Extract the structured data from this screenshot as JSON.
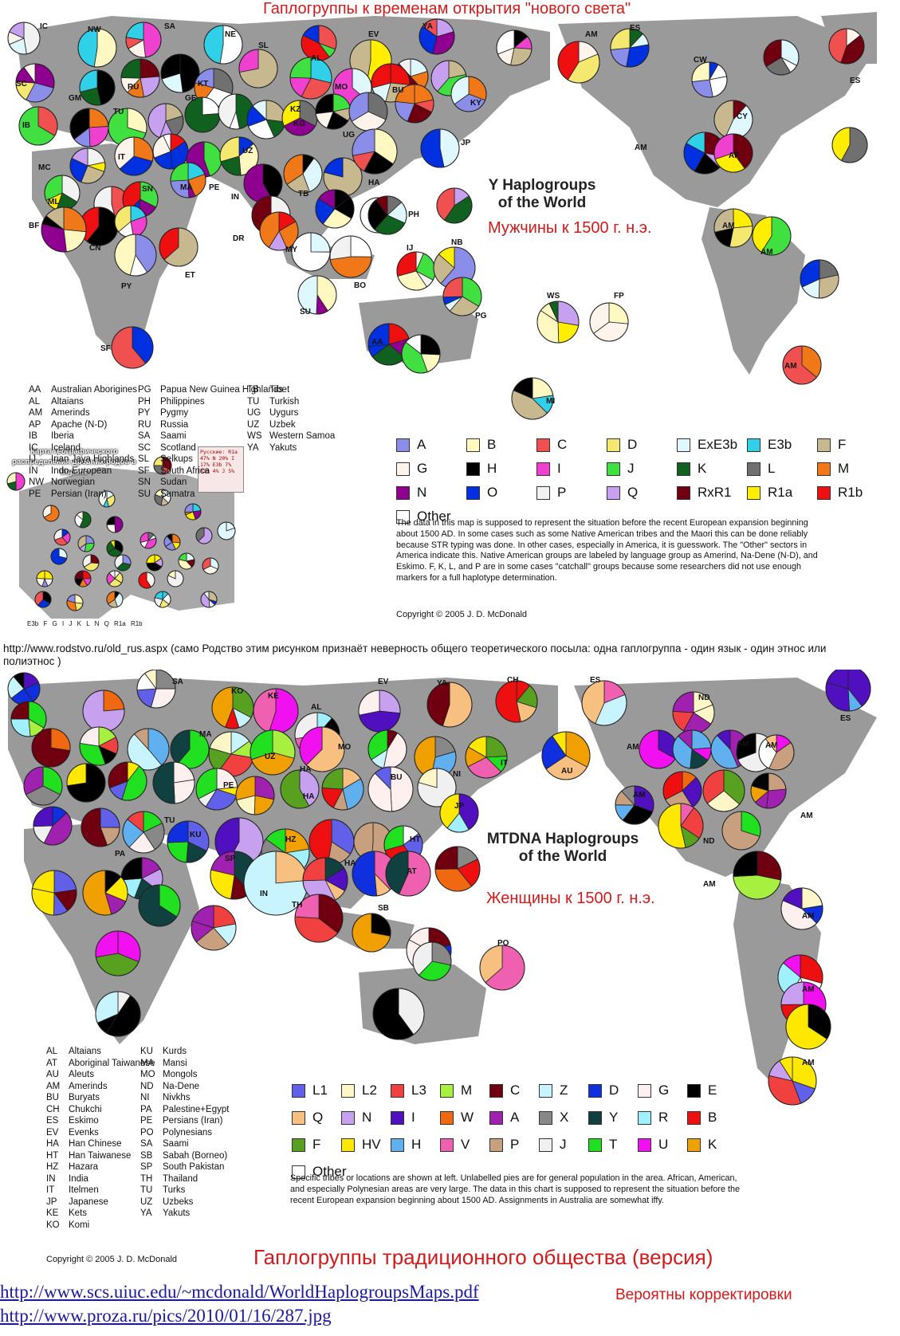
{
  "top": {
    "title": "Гаплогруппы к временам открытия \"нового света\"",
    "heading_line1": "Y Haplogroups",
    "heading_line2": "of the World",
    "subtitle": "Мужчины к 1500 г. н.э.",
    "labels": [
      "IC",
      "NW",
      "SA",
      "NE",
      "EV",
      "YA",
      "AM",
      "ES",
      "ES",
      "SC",
      "GM",
      "RU",
      "SL",
      "AL",
      "MO",
      "BU",
      "KY",
      "IB",
      "TU",
      "GE",
      "KT",
      "KZ",
      "KG",
      "CW",
      "CY",
      "MC",
      "IT",
      "UZ",
      "UG",
      "JP",
      "AM",
      "AP",
      "ML",
      "SN",
      "MA",
      "PE",
      "IN",
      "TB",
      "HA",
      "BF",
      "CN",
      "DR",
      "PH",
      "AM",
      "AM",
      "ET",
      "PY",
      "MY",
      "IJ",
      "NB",
      "BO",
      "SU",
      "PG",
      "WS",
      "FP",
      "SF",
      "AA",
      "AM",
      "MI"
    ],
    "abbreviations": [
      [
        "AA",
        "Australian Aborigines"
      ],
      [
        "AL",
        "Altaians"
      ],
      [
        "AM",
        "Amerinds"
      ],
      [
        "AP",
        "Apache (N-D)"
      ],
      [
        "IB",
        "Iberia"
      ],
      [
        "IC",
        "Iceland"
      ],
      [
        "IJ",
        "Irian Jaya Highlands"
      ],
      [
        "IN",
        "Indo-European"
      ],
      [
        "NW",
        "Norwegian"
      ],
      [
        "PE",
        "Persian (Iran)"
      ],
      [
        "PG",
        "Papua New Guinea Highlands"
      ],
      [
        "PH",
        "Philippines"
      ],
      [
        "PY",
        "Pygmy"
      ],
      [
        "RU",
        "Russia"
      ],
      [
        "SA",
        "Saami"
      ],
      [
        "SC",
        "Scotland"
      ],
      [
        "SL",
        "Selkups"
      ],
      [
        "SF",
        "South Africa"
      ],
      [
        "SN",
        "Sudan"
      ],
      [
        "SU",
        "Sumatra"
      ],
      [
        "TB",
        "Tibet"
      ],
      [
        "TU",
        "Turkish"
      ],
      [
        "UG",
        "Uygurs"
      ],
      [
        "UZ",
        "Uzbek"
      ],
      [
        "WS",
        "Western Samoa"
      ],
      [
        "YA",
        "Yakuts"
      ]
    ],
    "legend": [
      {
        "label": "A",
        "color": "#8a8ee8"
      },
      {
        "label": "B",
        "color": "#fff8c0"
      },
      {
        "label": "C",
        "color": "#f05050"
      },
      {
        "label": "D",
        "color": "#f5e870"
      },
      {
        "label": "ExE3b",
        "color": "#dff8ff"
      },
      {
        "label": "E3b",
        "color": "#30d0e8"
      },
      {
        "label": "F",
        "color": "#c8b890"
      },
      {
        "label": "G",
        "color": "#fff4ec"
      },
      {
        "label": "H",
        "color": "#000000"
      },
      {
        "label": "I",
        "color": "#f040d0"
      },
      {
        "label": "J",
        "color": "#40e040"
      },
      {
        "label": "K",
        "color": "#106020"
      },
      {
        "label": "L",
        "color": "#707070"
      },
      {
        "label": "M",
        "color": "#f07818"
      },
      {
        "label": "N",
        "color": "#900090"
      },
      {
        "label": "O",
        "color": "#0030e0"
      },
      {
        "label": "P",
        "color": "#f2f2f2"
      },
      {
        "label": "Q",
        "color": "#c8a0f0"
      },
      {
        "label": "RxR1",
        "color": "#700010"
      },
      {
        "label": "R1a",
        "color": "#ffee00"
      },
      {
        "label": "R1b",
        "color": "#ee1010"
      },
      {
        "label": "Other",
        "color": "#ffffff"
      }
    ],
    "note": "The data in this map is supposed to represent the situation before the recent European expansion beginning about 1500 AD. In some cases such as some Native American tribes and the Maori this can be done reliably because STR typing was done. In other cases, especially in America, it is guesswork. The \"Other\" sectors in America indicate this. Native American groups are labeled by language group as Amerind, Na-Dene (N-D), and Eskimo. F, K, L, and P are in some cases \"catchall\" groups because some researchers did not use enough markers for a full haplotype determination.",
    "copyright": "Copyright © 2005 J. D. McDonald",
    "inset": {
      "title": "Карта географического распределения древних родов в Европе",
      "russia_box": "Русские: R1a 47% N 20% I 17% E3b 7% R1b 4% J 5%",
      "legend": "E3b F G I J K L N Q R1a R1b"
    }
  },
  "caption": "http://www.rodstvo.ru/old_rus.aspx (само Родство этим рисунком признаёт неверность общего теоретического посыла: одна гаплогруппа - один язык - один этнос или   полиэтнос )",
  "bottom": {
    "heading_line1": "MTDNA Haplogroups",
    "heading_line2": "of the World",
    "subtitle": "Женщины к 1500 г. н.э.",
    "labels": [
      "SA",
      "KO",
      "KE",
      "AL",
      "EV",
      "YA",
      "CH",
      "ES",
      "ND",
      "ES",
      "MA",
      "UZ",
      "MO",
      "HA",
      "BU",
      "NI",
      "IT",
      "AU",
      "AM",
      "AM",
      "AM",
      "PE",
      "HA",
      "JP",
      "AM",
      "AM",
      "TU",
      "KU",
      "HZ",
      "HT",
      "ND",
      "PA",
      "SP",
      "HA",
      "AT",
      "IN",
      "TH",
      "SB",
      "AM",
      "PO",
      "AM",
      "AM",
      "AM"
    ],
    "abbreviations": [
      [
        "AL",
        "Altaians"
      ],
      [
        "AT",
        "Aboriginal Taiwanese"
      ],
      [
        "AU",
        "Aleuts"
      ],
      [
        "AM",
        "Amerinds"
      ],
      [
        "BU",
        "Buryats"
      ],
      [
        "CH",
        "Chukchi"
      ],
      [
        "ES",
        "Eskimo"
      ],
      [
        "EV",
        "Evenks"
      ],
      [
        "HA",
        "Han Chinese"
      ],
      [
        "HT",
        "Han Taiwanese"
      ],
      [
        "HZ",
        "Hazara"
      ],
      [
        "IN",
        "India"
      ],
      [
        "IT",
        "Itelmen"
      ],
      [
        "JP",
        "Japanese"
      ],
      [
        "KE",
        "Kets"
      ],
      [
        "KO",
        "Komi"
      ],
      [
        "KU",
        "Kurds"
      ],
      [
        "MA",
        "Mansi"
      ],
      [
        "MO",
        "Mongols"
      ],
      [
        "ND",
        "Na-Dene"
      ],
      [
        "NI",
        "Nivkhs"
      ],
      [
        "PA",
        "Palestine+Egypt"
      ],
      [
        "PE",
        "Persians (Iran)"
      ],
      [
        "PO",
        "Polynesians"
      ],
      [
        "SA",
        "Saami"
      ],
      [
        "SB",
        "Sabah (Borneo)"
      ],
      [
        "SP",
        "South Pakistan"
      ],
      [
        "TH",
        "Thailand"
      ],
      [
        "TU",
        "Turks"
      ],
      [
        "UZ",
        "Uzbeks"
      ],
      [
        "YA",
        "Yakuts"
      ]
    ],
    "legend": [
      {
        "label": "L1",
        "color": "#6060e8"
      },
      {
        "label": "L2",
        "color": "#fff6c8"
      },
      {
        "label": "L3",
        "color": "#f04040"
      },
      {
        "label": "M",
        "color": "#a8f040"
      },
      {
        "label": "C",
        "color": "#700010"
      },
      {
        "label": "Z",
        "color": "#c8f4ff"
      },
      {
        "label": "D",
        "color": "#1030e0"
      },
      {
        "label": "G",
        "color": "#fff0f0"
      },
      {
        "label": "E",
        "color": "#000000"
      },
      {
        "label": "Q",
        "color": "#f8c080"
      },
      {
        "label": "N",
        "color": "#c8a0f0"
      },
      {
        "label": "I",
        "color": "#5010c0"
      },
      {
        "label": "W",
        "color": "#f06810"
      },
      {
        "label": "A",
        "color": "#a020b0"
      },
      {
        "label": "X",
        "color": "#888888"
      },
      {
        "label": "Y",
        "color": "#104040"
      },
      {
        "label": "R",
        "color": "#a0f0ff"
      },
      {
        "label": "B",
        "color": "#ee1010"
      },
      {
        "label": "F",
        "color": "#58a020"
      },
      {
        "label": "HV",
        "color": "#ffe800"
      },
      {
        "label": "H",
        "color": "#60b0f0"
      },
      {
        "label": "V",
        "color": "#f060b0"
      },
      {
        "label": "P",
        "color": "#c8a080"
      },
      {
        "label": "J",
        "color": "#f0f0f0"
      },
      {
        "label": "T",
        "color": "#20e020"
      },
      {
        "label": "U",
        "color": "#f010f0"
      },
      {
        "label": "K",
        "color": "#f0a000"
      },
      {
        "label": "Other",
        "color": "#ffffff"
      }
    ],
    "note": "Specific tribes or locations are shown at left. Unlabelled pies are for general population in the area. African, American, and especially Polynesian areas are very large. The data in this chart is supposed to represent the situation before the recent European expansion beginning about 1500 AD. Assignments in Australia are somewhat iffy.",
    "copyright": "Copyright © 2005 J. D. McDonald",
    "title_ru": "Гаплогруппы традиционного общества (версия)"
  },
  "links": {
    "pdf": "http://www.scs.uiuc.edu/~mcdonald/WorldHaplogroupsMaps.pdf",
    "pdf_note": "Вероятны корректировки",
    "jpg": "http://www.proza.ru/pics/2010/01/16/287.jpg"
  }
}
